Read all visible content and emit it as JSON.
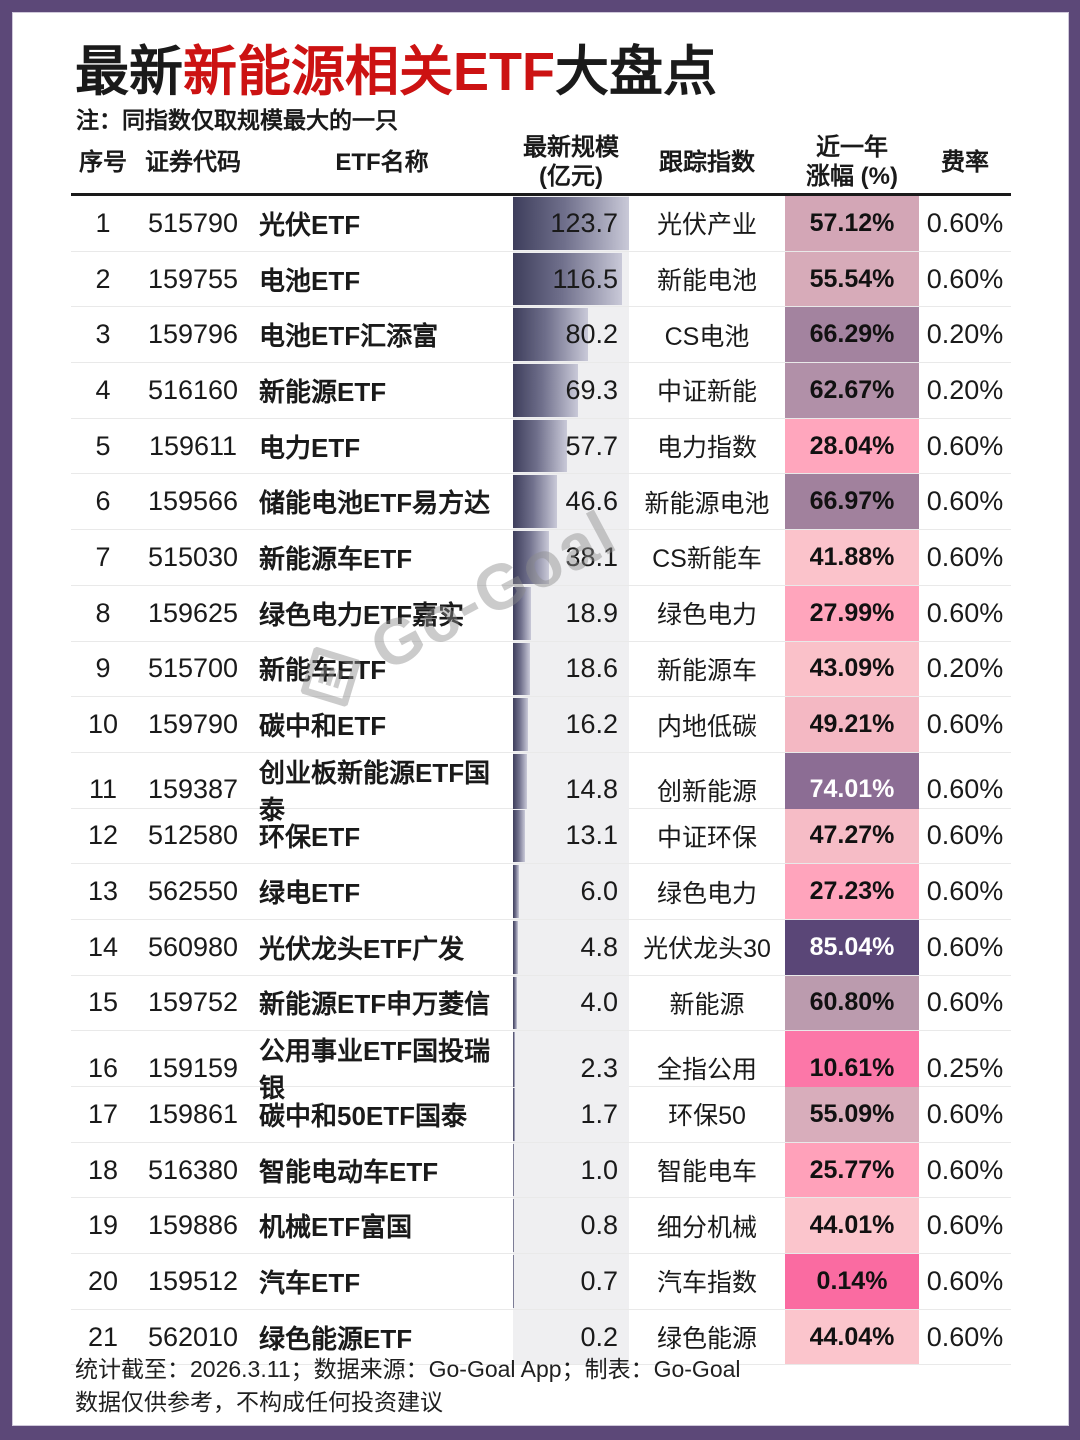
{
  "frame": {
    "border_color": "#5c4878"
  },
  "header": {
    "title_part1": "最新",
    "title_part2": "新能源相关ETF",
    "title_part3": "大盘点",
    "title_accent_color": "#cc1212",
    "note": "注：同指数仅取规模最大的一只"
  },
  "table": {
    "columns": [
      {
        "line1": "序号",
        "line2": ""
      },
      {
        "line1": "证券代码",
        "line2": ""
      },
      {
        "line1": "ETF名称",
        "line2": ""
      },
      {
        "line1": "最新规模",
        "line2": "(亿元)"
      },
      {
        "line1": "跟踪指数",
        "line2": ""
      },
      {
        "line1": "近一年",
        "line2": "涨幅 (%)"
      },
      {
        "line1": "费率",
        "line2": ""
      }
    ],
    "scale_max": 123.7,
    "bar_colors": {
      "dark": "#3e3e5c",
      "light": "#c9c9d8",
      "track": "#efeff1"
    },
    "rows": [
      {
        "no": "1",
        "code": "515790",
        "name": "光伏ETF",
        "scale": "123.7",
        "index": "光伏产业",
        "return": "57.12%",
        "fee": "0.60%",
        "return_bg": "#d3a6b6",
        "return_fg": "#111111"
      },
      {
        "no": "2",
        "code": "159755",
        "name": "电池ETF",
        "scale": "116.5",
        "index": "新能电池",
        "return": "55.54%",
        "fee": "0.60%",
        "return_bg": "#d7abb9",
        "return_fg": "#111111"
      },
      {
        "no": "3",
        "code": "159796",
        "name": "电池ETF汇添富",
        "scale": "80.2",
        "index": "CS电池",
        "return": "66.29%",
        "fee": "0.20%",
        "return_bg": "#a3839f",
        "return_fg": "#111111"
      },
      {
        "no": "4",
        "code": "516160",
        "name": "新能源ETF",
        "scale": "69.3",
        "index": "中证新能",
        "return": "62.67%",
        "fee": "0.20%",
        "return_bg": "#b190a8",
        "return_fg": "#111111"
      },
      {
        "no": "5",
        "code": "159611",
        "name": "电力ETF",
        "scale": "57.7",
        "index": "电力指数",
        "return": "28.04%",
        "fee": "0.60%",
        "return_bg": "#ffa6bd",
        "return_fg": "#111111"
      },
      {
        "no": "6",
        "code": "159566",
        "name": "储能电池ETF易方达",
        "scale": "46.6",
        "index": "新能源电池",
        "return": "66.97%",
        "fee": "0.60%",
        "return_bg": "#a1819d",
        "return_fg": "#111111"
      },
      {
        "no": "7",
        "code": "515030",
        "name": "新能源车ETF",
        "scale": "38.1",
        "index": "CS新能车",
        "return": "41.88%",
        "fee": "0.60%",
        "return_bg": "#fbc3cb",
        "return_fg": "#111111"
      },
      {
        "no": "8",
        "code": "159625",
        "name": "绿色电力ETF嘉实",
        "scale": "18.9",
        "index": "绿色电力",
        "return": "27.99%",
        "fee": "0.60%",
        "return_bg": "#ffa5bc",
        "return_fg": "#111111"
      },
      {
        "no": "9",
        "code": "515700",
        "name": "新能车ETF",
        "scale": "18.6",
        "index": "新能源车",
        "return": "43.09%",
        "fee": "0.20%",
        "return_bg": "#fac1c9",
        "return_fg": "#111111"
      },
      {
        "no": "10",
        "code": "159790",
        "name": "碳中和ETF",
        "scale": "16.2",
        "index": "内地低碳",
        "return": "49.21%",
        "fee": "0.60%",
        "return_bg": "#f4b8c3",
        "return_fg": "#111111"
      },
      {
        "no": "11",
        "code": "159387",
        "name": "创业板新能源ETF国泰",
        "scale": "14.8",
        "index": "创新能源",
        "return": "74.01%",
        "fee": "0.60%",
        "return_bg": "#8c6d94",
        "return_fg": "#ffffff"
      },
      {
        "no": "12",
        "code": "512580",
        "name": "环保ETF",
        "scale": "13.1",
        "index": "中证环保",
        "return": "47.27%",
        "fee": "0.60%",
        "return_bg": "#f6bcc6",
        "return_fg": "#111111"
      },
      {
        "no": "13",
        "code": "562550",
        "name": "绿电ETF",
        "scale": "6.0",
        "index": "绿色电力",
        "return": "27.23%",
        "fee": "0.60%",
        "return_bg": "#ffa4bc",
        "return_fg": "#111111"
      },
      {
        "no": "14",
        "code": "560980",
        "name": "光伏龙头ETF广发",
        "scale": "4.8",
        "index": "光伏龙头30",
        "return": "85.04%",
        "fee": "0.60%",
        "return_bg": "#5a4677",
        "return_fg": "#ffffff"
      },
      {
        "no": "15",
        "code": "159752",
        "name": "新能源ETF申万菱信",
        "scale": "4.0",
        "index": "新能源",
        "return": "60.80%",
        "fee": "0.60%",
        "return_bg": "#bb9bae",
        "return_fg": "#111111"
      },
      {
        "no": "16",
        "code": "159159",
        "name": "公用事业ETF国投瑞银",
        "scale": "2.3",
        "index": "全指公用",
        "return": "10.61%",
        "fee": "0.25%",
        "return_bg": "#fc77a8",
        "return_fg": "#111111"
      },
      {
        "no": "17",
        "code": "159861",
        "name": "碳中和50ETF国泰",
        "scale": "1.7",
        "index": "环保50",
        "return": "55.09%",
        "fee": "0.60%",
        "return_bg": "#d8adbb",
        "return_fg": "#111111"
      },
      {
        "no": "18",
        "code": "516380",
        "name": "智能电动车ETF",
        "scale": "1.0",
        "index": "智能电车",
        "return": "25.77%",
        "fee": "0.60%",
        "return_bg": "#ffa1ba",
        "return_fg": "#111111"
      },
      {
        "no": "19",
        "code": "159886",
        "name": "机械ETF富国",
        "scale": "0.8",
        "index": "细分机械",
        "return": "44.01%",
        "fee": "0.60%",
        "return_bg": "#fbc5cc",
        "return_fg": "#111111"
      },
      {
        "no": "20",
        "code": "159512",
        "name": "汽车ETF",
        "scale": "0.7",
        "index": "汽车指数",
        "return": "0.14%",
        "fee": "0.60%",
        "return_bg": "#fa6ba1",
        "return_fg": "#111111"
      },
      {
        "no": "21",
        "code": "562010",
        "name": "绿色能源ETF",
        "scale": "0.2",
        "index": "绿色能源",
        "return": "44.04%",
        "fee": "0.60%",
        "return_bg": "#fbc5cc",
        "return_fg": "#111111"
      }
    ]
  },
  "watermark": {
    "text": "Go-Goal"
  },
  "footer": {
    "line1": "统计截至：2026.3.11；数据来源：Go-Goal App；制表：Go-Goal",
    "line2": "数据仅供参考，不构成任何投资建议"
  },
  "chart_data": {
    "type": "table",
    "title": "最新新能源相关ETF大盘点",
    "note": "注：同指数仅取规模最大的一只",
    "columns": [
      "序号",
      "证券代码",
      "ETF名称",
      "最新规模(亿元)",
      "跟踪指数",
      "近一年涨幅(%)",
      "费率"
    ],
    "scale_bar_max": 123.7,
    "rows": [
      [
        1,
        "515790",
        "光伏ETF",
        123.7,
        "光伏产业",
        57.12,
        0.6
      ],
      [
        2,
        "159755",
        "电池ETF",
        116.5,
        "新能电池",
        55.54,
        0.6
      ],
      [
        3,
        "159796",
        "电池ETF汇添富",
        80.2,
        "CS电池",
        66.29,
        0.2
      ],
      [
        4,
        "516160",
        "新能源ETF",
        69.3,
        "中证新能",
        62.67,
        0.2
      ],
      [
        5,
        "159611",
        "电力ETF",
        57.7,
        "电力指数",
        28.04,
        0.6
      ],
      [
        6,
        "159566",
        "储能电池ETF易方达",
        46.6,
        "新能源电池",
        66.97,
        0.6
      ],
      [
        7,
        "515030",
        "新能源车ETF",
        38.1,
        "CS新能车",
        41.88,
        0.6
      ],
      [
        8,
        "159625",
        "绿色电力ETF嘉实",
        18.9,
        "绿色电力",
        27.99,
        0.6
      ],
      [
        9,
        "515700",
        "新能车ETF",
        18.6,
        "新能源车",
        43.09,
        0.2
      ],
      [
        10,
        "159790",
        "碳中和ETF",
        16.2,
        "内地低碳",
        49.21,
        0.6
      ],
      [
        11,
        "159387",
        "创业板新能源ETF国泰",
        14.8,
        "创新能源",
        74.01,
        0.6
      ],
      [
        12,
        "512580",
        "环保ETF",
        13.1,
        "中证环保",
        47.27,
        0.6
      ],
      [
        13,
        "562550",
        "绿电ETF",
        6.0,
        "绿色电力",
        27.23,
        0.6
      ],
      [
        14,
        "560980",
        "光伏龙头ETF广发",
        4.8,
        "光伏龙头30",
        85.04,
        0.6
      ],
      [
        15,
        "159752",
        "新能源ETF申万菱信",
        4.0,
        "新能源",
        60.8,
        0.6
      ],
      [
        16,
        "159159",
        "公用事业ETF国投瑞银",
        2.3,
        "全指公用",
        10.61,
        0.25
      ],
      [
        17,
        "159861",
        "碳中和50ETF国泰",
        1.7,
        "环保50",
        55.09,
        0.6
      ],
      [
        18,
        "516380",
        "智能电动车ETF",
        1.0,
        "智能电车",
        25.77,
        0.6
      ],
      [
        19,
        "159886",
        "机械ETF富国",
        0.8,
        "细分机械",
        44.01,
        0.6
      ],
      [
        20,
        "159512",
        "汽车ETF",
        0.7,
        "汽车指数",
        0.14,
        0.6
      ],
      [
        21,
        "562010",
        "绿色能源ETF",
        0.2,
        "绿色能源",
        44.04,
        0.6
      ]
    ]
  }
}
